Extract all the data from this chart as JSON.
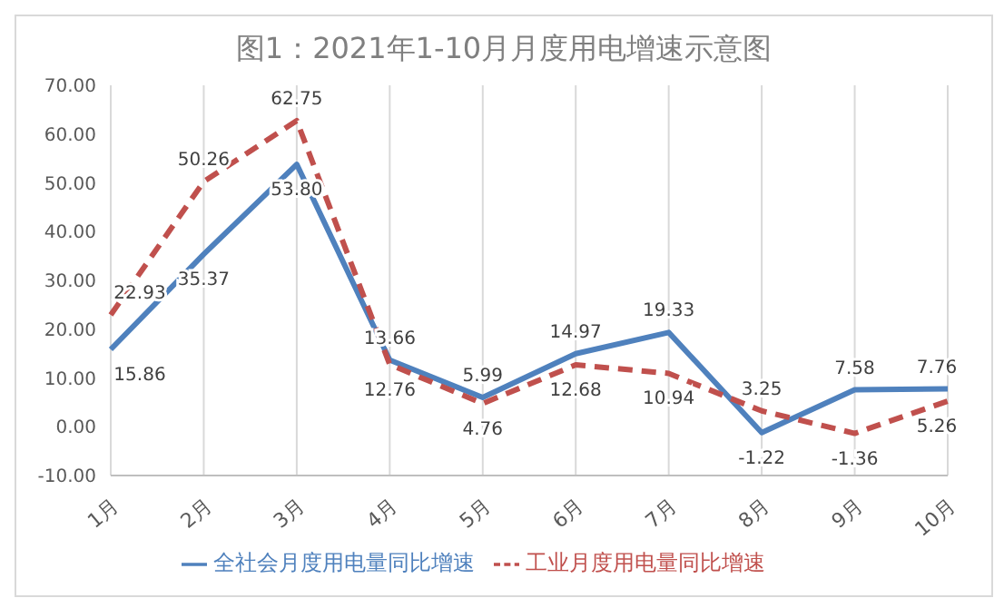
{
  "chart_data": {
    "type": "line",
    "title": "图1：2021年1-10月月度用电增速示意图",
    "categories": [
      "1月",
      "2月",
      "3月",
      "4月",
      "5月",
      "6月",
      "7月",
      "8月",
      "9月",
      "10月"
    ],
    "series": [
      {
        "name": "全社会月度用电量同比增速",
        "color": "#4f81bd",
        "line_style": "solid",
        "values": [
          15.86,
          35.37,
          53.8,
          13.66,
          5.99,
          14.97,
          19.33,
          -1.22,
          7.58,
          7.76
        ],
        "value_labels": [
          "15.86",
          "35.37",
          "53.80",
          "13.66",
          "5.99",
          "14.97",
          "19.33",
          "-1.22",
          "7.58",
          "7.76"
        ]
      },
      {
        "name": "工业月度用电量同比增速",
        "color": "#c0504d",
        "line_style": "dashed",
        "values": [
          22.93,
          50.26,
          62.75,
          12.76,
          4.76,
          12.68,
          10.94,
          3.25,
          -1.36,
          5.26
        ],
        "value_labels": [
          "22.93",
          "50.26",
          "62.75",
          "12.76",
          "4.76",
          "12.68",
          "10.94",
          "3.25",
          "-1.36",
          "5.26"
        ]
      }
    ],
    "ylim": [
      -10,
      70
    ],
    "yticks": [
      {
        "value": -10,
        "label": "-10.00"
      },
      {
        "value": 0,
        "label": "0.00"
      },
      {
        "value": 10,
        "label": "10.00"
      },
      {
        "value": 20,
        "label": "20.00"
      },
      {
        "value": 30,
        "label": "30.00"
      },
      {
        "value": 40,
        "label": "40.00"
      },
      {
        "value": 50,
        "label": "50.00"
      },
      {
        "value": 60,
        "label": "60.00"
      },
      {
        "value": 70,
        "label": "70.00"
      }
    ],
    "grid": "x",
    "legend": "bottom",
    "marker": "none"
  }
}
